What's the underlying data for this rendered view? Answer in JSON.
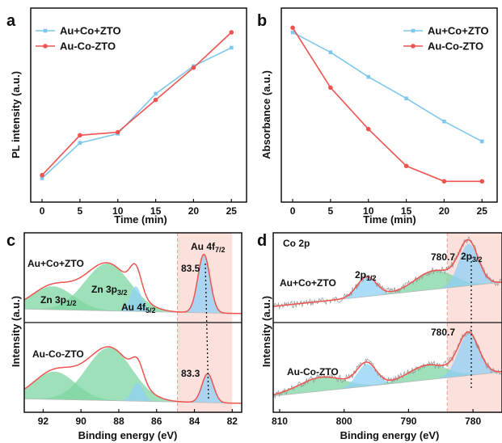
{
  "colors": {
    "blue": "#7ec8ee",
    "red": "#ef5350",
    "green": "#7dd6a2",
    "bluefill": "#8fd0f5",
    "band": "#fbe0dc"
  },
  "panel_labels": [
    "a",
    "b",
    "c",
    "d"
  ],
  "chart_data": [
    {
      "panel": "a",
      "type": "line",
      "xlabel": "Time (min)",
      "ylabel": "PL intensity (a.u.)",
      "x": [
        0,
        5,
        10,
        15,
        20,
        25
      ],
      "xlim": [
        -1.5,
        27
      ],
      "xticks": [
        "0",
        "5",
        "10",
        "15",
        "20",
        "25"
      ],
      "ylim": [
        0,
        1
      ],
      "legend": "top-left",
      "series": [
        {
          "name": "Au+Co+ZTO",
          "color": "#7ec8ee",
          "values": [
            0.05,
            0.28,
            0.34,
            0.6,
            0.78,
            0.9
          ]
        },
        {
          "name": "Au-Co-ZTO",
          "color": "#ef5350",
          "values": [
            0.07,
            0.33,
            0.35,
            0.56,
            0.77,
            1.0
          ]
        }
      ]
    },
    {
      "panel": "b",
      "type": "line",
      "xlabel": "Time (min)",
      "ylabel": "Absorbance (a.u.)",
      "x": [
        0,
        5,
        10,
        15,
        20,
        25
      ],
      "xlim": [
        -1.5,
        27
      ],
      "xticks": [
        "0",
        "5",
        "10",
        "15",
        "20",
        "25"
      ],
      "ylim": [
        0,
        1
      ],
      "legend": "top-right",
      "series": [
        {
          "name": "Au+Co+ZTO",
          "color": "#7ec8ee",
          "values": [
            1.0,
            0.87,
            0.71,
            0.57,
            0.42,
            0.29
          ]
        },
        {
          "name": "Au-Co-ZTO",
          "color": "#ef5350",
          "values": [
            1.03,
            0.64,
            0.37,
            0.13,
            0.03,
            0.03
          ]
        }
      ]
    },
    {
      "panel": "c",
      "type": "line",
      "xlabel": "Binding energy (eV)",
      "ylabel": "Intensity (a.u.)",
      "xlim": [
        93,
        81.5
      ],
      "xticks": [
        "92",
        "90",
        "88",
        "86",
        "84",
        "82"
      ],
      "highlight_band": [
        84.9,
        82.0
      ],
      "samples": [
        {
          "name": "Au+Co+ZTO",
          "peaks": [
            {
              "label": "Zn 3p1/2",
              "center": 91.5,
              "height": 0.42,
              "width": 1.1,
              "color": "#7dd6a2"
            },
            {
              "label": "Zn 3p3/2",
              "center": 88.6,
              "height": 0.85,
              "width": 1.2,
              "color": "#7dd6a2"
            },
            {
              "label": "Au 4f5/2",
              "center": 87.1,
              "height": 0.45,
              "width": 0.3,
              "color": "#8fd0f5"
            },
            {
              "label": "Au 4f7/2",
              "center": 83.5,
              "height": 1.05,
              "width": 0.32,
              "color": "#8fd0f5"
            }
          ]
        },
        {
          "name": "Au-Co-ZTO",
          "peaks": [
            {
              "center": 91.4,
              "height": 0.5,
              "width": 1.1,
              "color": "#7dd6a2"
            },
            {
              "center": 88.5,
              "height": 0.95,
              "width": 1.2,
              "color": "#7dd6a2"
            },
            {
              "center": 87.0,
              "height": 0.33,
              "width": 0.3,
              "color": "#8fd0f5"
            },
            {
              "center": 83.3,
              "height": 0.52,
              "width": 0.3,
              "color": "#8fd0f5"
            }
          ]
        }
      ],
      "annotations": {
        "au_top": "Au 4f",
        "au_top_sub": "7/2",
        "zn1": "Zn 3p",
        "zn1_sub": "1/2",
        "zn2": "Zn 3p",
        "zn2_sub": "3/2",
        "au52": "Au 4f",
        "au52_sub": "5/2",
        "peak_top": "83.5",
        "peak_bot": "83.3"
      }
    },
    {
      "panel": "d",
      "type": "line",
      "xlabel": "Binding energy (eV)",
      "ylabel": "Intensity (a.u.)",
      "xlim": [
        811,
        775.5
      ],
      "xticks": [
        "810",
        "800",
        "790",
        "780"
      ],
      "highlight_band": [
        784.0,
        775.5
      ],
      "samples": [
        {
          "name": "Au+Co+ZTO",
          "peaks": [
            {
              "label": "2p1/2",
              "center": 796.5,
              "height": 0.4,
              "width": 1.5,
              "color": "#8fd0f5"
            },
            {
              "center": 786.0,
              "height": 0.38,
              "width": 3.0,
              "color": "#7dd6a2"
            },
            {
              "label": "2p3/2",
              "center": 780.7,
              "height": 0.85,
              "width": 1.5,
              "color": "#8fd0f5"
            }
          ]
        },
        {
          "name": "Au-Co-ZTO",
          "peaks": [
            {
              "center": 803.5,
              "height": 0.28,
              "width": 3.5,
              "color": "#7dd6a2"
            },
            {
              "center": 796.5,
              "height": 0.45,
              "width": 1.5,
              "color": "#8fd0f5"
            },
            {
              "center": 787.0,
              "height": 0.3,
              "width": 3.0,
              "color": "#7dd6a2"
            },
            {
              "center": 780.7,
              "height": 0.85,
              "width": 1.6,
              "color": "#8fd0f5"
            }
          ]
        }
      ],
      "annotations": {
        "title": "Co 2p",
        "p12": "2p",
        "p12_sub": "1/2",
        "p32": "2p",
        "p32_sub": "3/2",
        "peak_top": "780.7",
        "peak_bot": "780.7"
      }
    }
  ]
}
